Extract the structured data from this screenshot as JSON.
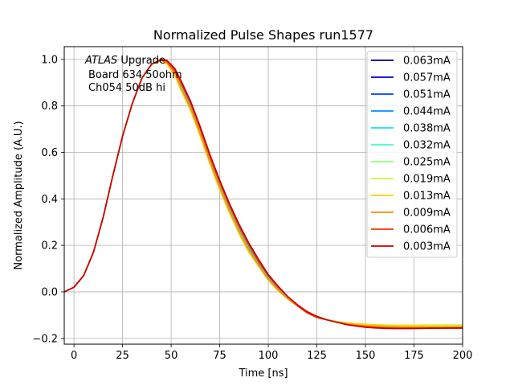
{
  "chart_data": {
    "type": "line",
    "title": "Normalized Pulse Shapes run1577",
    "xlabel": "Time [ns]",
    "ylabel": "Normalized Amplitude (A.U.)",
    "xlim": [
      -5,
      200
    ],
    "ylim": [
      -0.225,
      1.055
    ],
    "xticks": [
      0,
      25,
      50,
      75,
      100,
      125,
      150,
      175,
      200
    ],
    "xtick_labels": [
      "0",
      "25",
      "50",
      "75",
      "100",
      "125",
      "150",
      "175",
      "200"
    ],
    "yticks": [
      -0.2,
      0.0,
      0.2,
      0.4,
      0.6,
      0.8,
      1.0
    ],
    "ytick_labels": [
      "−0.2",
      "0.0",
      "0.2",
      "0.4",
      "0.6",
      "0.8",
      "1.0"
    ],
    "grid": true,
    "legend_position": "upper right",
    "annotation": {
      "italic": "ATLAS",
      "line1_rest": " Upgrade",
      "line2": "Board 634 50ohm",
      "line3": "Ch054 50dB hi"
    },
    "x": [
      -5,
      0,
      5,
      10,
      15,
      20,
      25,
      30,
      35,
      40,
      45,
      48,
      52,
      55,
      60,
      65,
      70,
      75,
      80,
      85,
      90,
      95,
      100,
      105,
      110,
      115,
      120,
      125,
      130,
      135,
      140,
      145,
      150,
      155,
      160,
      165,
      170,
      175,
      180,
      185,
      190,
      195,
      200
    ],
    "series": [
      {
        "name": "0.063mA",
        "color": "#00008f",
        "values": [
          0.0,
          0.02,
          0.07,
          0.17,
          0.32,
          0.5,
          0.67,
          0.81,
          0.92,
          0.98,
          1.0,
          0.99,
          0.95,
          0.9,
          0.81,
          0.7,
          0.58,
          0.47,
          0.37,
          0.28,
          0.2,
          0.13,
          0.07,
          0.02,
          -0.02,
          -0.06,
          -0.09,
          -0.11,
          -0.12,
          -0.13,
          -0.14,
          -0.145,
          -0.15,
          -0.152,
          -0.153,
          -0.154,
          -0.155,
          -0.155,
          -0.155,
          -0.155,
          -0.155,
          -0.155,
          -0.155
        ]
      },
      {
        "name": "0.057mA",
        "color": "#0000df",
        "values": [
          0.0,
          0.02,
          0.07,
          0.17,
          0.32,
          0.5,
          0.67,
          0.81,
          0.92,
          0.98,
          1.0,
          0.99,
          0.95,
          0.9,
          0.81,
          0.7,
          0.58,
          0.47,
          0.37,
          0.28,
          0.2,
          0.13,
          0.07,
          0.02,
          -0.02,
          -0.06,
          -0.09,
          -0.11,
          -0.12,
          -0.13,
          -0.14,
          -0.145,
          -0.15,
          -0.152,
          -0.153,
          -0.154,
          -0.155,
          -0.155,
          -0.155,
          -0.155,
          -0.155,
          -0.155,
          -0.155
        ]
      },
      {
        "name": "0.051mA",
        "color": "#0040ff",
        "values": [
          0.0,
          0.02,
          0.07,
          0.17,
          0.32,
          0.5,
          0.67,
          0.81,
          0.92,
          0.98,
          1.0,
          0.99,
          0.95,
          0.9,
          0.81,
          0.7,
          0.58,
          0.47,
          0.37,
          0.28,
          0.2,
          0.13,
          0.07,
          0.02,
          -0.02,
          -0.06,
          -0.09,
          -0.11,
          -0.12,
          -0.13,
          -0.14,
          -0.145,
          -0.15,
          -0.152,
          -0.153,
          -0.154,
          -0.155,
          -0.155,
          -0.155,
          -0.155,
          -0.155,
          -0.155,
          -0.155
        ]
      },
      {
        "name": "0.044mA",
        "color": "#0090ff",
        "values": [
          0.0,
          0.02,
          0.07,
          0.17,
          0.32,
          0.5,
          0.67,
          0.81,
          0.92,
          0.98,
          1.0,
          0.99,
          0.95,
          0.89,
          0.8,
          0.69,
          0.57,
          0.46,
          0.36,
          0.27,
          0.19,
          0.12,
          0.06,
          0.015,
          -0.025,
          -0.06,
          -0.09,
          -0.11,
          -0.12,
          -0.13,
          -0.138,
          -0.143,
          -0.147,
          -0.15,
          -0.152,
          -0.153,
          -0.154,
          -0.155,
          -0.155,
          -0.155,
          -0.155,
          -0.155,
          -0.155
        ]
      },
      {
        "name": "0.038mA",
        "color": "#10e0ef",
        "values": [
          0.0,
          0.02,
          0.07,
          0.17,
          0.32,
          0.5,
          0.67,
          0.81,
          0.92,
          0.98,
          1.0,
          0.99,
          0.95,
          0.89,
          0.8,
          0.69,
          0.57,
          0.46,
          0.36,
          0.27,
          0.19,
          0.12,
          0.06,
          0.015,
          -0.025,
          -0.06,
          -0.09,
          -0.11,
          -0.12,
          -0.13,
          -0.137,
          -0.142,
          -0.145,
          -0.147,
          -0.148,
          -0.149,
          -0.15,
          -0.15,
          -0.15,
          -0.15,
          -0.15,
          -0.15,
          -0.15
        ]
      },
      {
        "name": "0.032mA",
        "color": "#40ffbf",
        "values": [
          0.0,
          0.02,
          0.07,
          0.17,
          0.32,
          0.5,
          0.67,
          0.81,
          0.92,
          0.98,
          1.0,
          0.99,
          0.94,
          0.88,
          0.79,
          0.68,
          0.56,
          0.45,
          0.35,
          0.26,
          0.18,
          0.115,
          0.055,
          0.01,
          -0.03,
          -0.06,
          -0.09,
          -0.11,
          -0.12,
          -0.128,
          -0.135,
          -0.14,
          -0.143,
          -0.145,
          -0.146,
          -0.147,
          -0.148,
          -0.148,
          -0.148,
          -0.148,
          -0.148,
          -0.148,
          -0.148
        ]
      },
      {
        "name": "0.025mA",
        "color": "#90ff70",
        "values": [
          0.0,
          0.02,
          0.07,
          0.17,
          0.32,
          0.5,
          0.67,
          0.81,
          0.92,
          0.98,
          1.0,
          0.99,
          0.94,
          0.88,
          0.79,
          0.68,
          0.56,
          0.45,
          0.35,
          0.26,
          0.18,
          0.115,
          0.055,
          0.01,
          -0.03,
          -0.06,
          -0.09,
          -0.11,
          -0.12,
          -0.128,
          -0.134,
          -0.138,
          -0.14,
          -0.142,
          -0.143,
          -0.144,
          -0.145,
          -0.145,
          -0.145,
          -0.145,
          -0.145,
          -0.145,
          -0.145
        ]
      },
      {
        "name": "0.019mA",
        "color": "#bfff40",
        "values": [
          0.0,
          0.02,
          0.07,
          0.17,
          0.32,
          0.5,
          0.67,
          0.81,
          0.92,
          0.98,
          0.995,
          0.98,
          0.93,
          0.87,
          0.78,
          0.67,
          0.55,
          0.44,
          0.34,
          0.25,
          0.17,
          0.11,
          0.05,
          0.005,
          -0.03,
          -0.06,
          -0.09,
          -0.11,
          -0.12,
          -0.127,
          -0.133,
          -0.137,
          -0.139,
          -0.141,
          -0.142,
          -0.143,
          -0.143,
          -0.143,
          -0.142,
          -0.142,
          -0.142,
          -0.142,
          -0.142
        ]
      },
      {
        "name": "0.013mA",
        "color": "#ffd000",
        "values": [
          0.0,
          0.02,
          0.07,
          0.17,
          0.32,
          0.5,
          0.67,
          0.81,
          0.92,
          0.98,
          0.995,
          0.98,
          0.93,
          0.87,
          0.78,
          0.67,
          0.55,
          0.44,
          0.34,
          0.25,
          0.17,
          0.11,
          0.05,
          0.005,
          -0.03,
          -0.06,
          -0.09,
          -0.11,
          -0.12,
          -0.127,
          -0.133,
          -0.137,
          -0.14,
          -0.142,
          -0.144,
          -0.145,
          -0.146,
          -0.146,
          -0.146,
          -0.146,
          -0.146,
          -0.146,
          -0.146
        ]
      },
      {
        "name": "0.009mA",
        "color": "#ff8c00",
        "values": [
          0.0,
          0.02,
          0.07,
          0.17,
          0.32,
          0.5,
          0.67,
          0.81,
          0.92,
          0.98,
          0.995,
          0.985,
          0.94,
          0.88,
          0.79,
          0.68,
          0.56,
          0.45,
          0.35,
          0.26,
          0.18,
          0.115,
          0.055,
          0.01,
          -0.03,
          -0.06,
          -0.09,
          -0.11,
          -0.12,
          -0.13,
          -0.137,
          -0.142,
          -0.146,
          -0.148,
          -0.15,
          -0.151,
          -0.152,
          -0.152,
          -0.152,
          -0.152,
          -0.152,
          -0.152,
          -0.152
        ]
      },
      {
        "name": "0.006mA",
        "color": "#ff3000",
        "values": [
          0.0,
          0.02,
          0.07,
          0.17,
          0.32,
          0.5,
          0.67,
          0.81,
          0.92,
          0.98,
          1.0,
          0.99,
          0.95,
          0.9,
          0.81,
          0.7,
          0.58,
          0.47,
          0.37,
          0.28,
          0.2,
          0.13,
          0.07,
          0.02,
          -0.02,
          -0.06,
          -0.09,
          -0.11,
          -0.12,
          -0.13,
          -0.14,
          -0.145,
          -0.15,
          -0.153,
          -0.155,
          -0.156,
          -0.156,
          -0.156,
          -0.156,
          -0.156,
          -0.156,
          -0.156,
          -0.156
        ]
      },
      {
        "name": "0.003mA",
        "color": "#c80000",
        "values": [
          0.0,
          0.02,
          0.07,
          0.17,
          0.32,
          0.5,
          0.67,
          0.81,
          0.92,
          0.98,
          1.0,
          0.995,
          0.96,
          0.91,
          0.82,
          0.71,
          0.59,
          0.48,
          0.38,
          0.29,
          0.21,
          0.14,
          0.075,
          0.025,
          -0.02,
          -0.055,
          -0.085,
          -0.105,
          -0.12,
          -0.13,
          -0.14,
          -0.147,
          -0.152,
          -0.155,
          -0.157,
          -0.158,
          -0.158,
          -0.158,
          -0.157,
          -0.156,
          -0.156,
          -0.155,
          -0.155
        ]
      }
    ]
  }
}
